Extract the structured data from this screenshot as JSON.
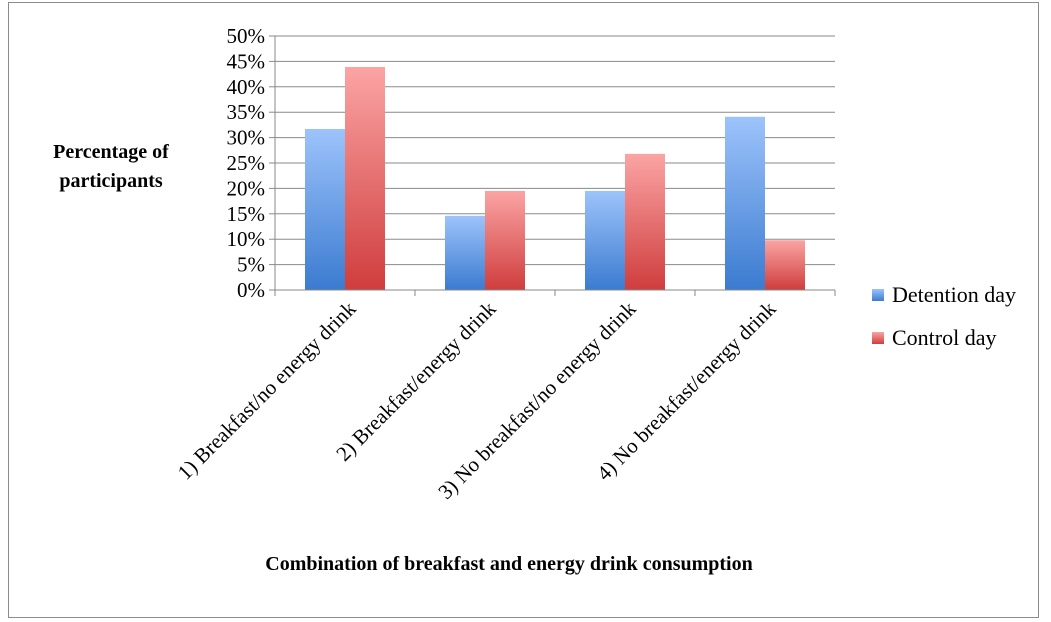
{
  "chart_data": {
    "type": "bar",
    "title": "",
    "categories": [
      "1) Breakfast/no energy drink",
      "2) Breakfast/energy drink",
      "3) No breakfast/no energy drink",
      "4) No breakfast/energy drink"
    ],
    "series": [
      {
        "name": "Detention day",
        "values": [
          31.7,
          14.6,
          19.5,
          34.1
        ]
      },
      {
        "name": "Control day",
        "values": [
          43.9,
          19.5,
          26.8,
          9.8
        ]
      }
    ],
    "ylabel": [
      "Percentage of",
      "participants"
    ],
    "xlabel": "Combination of breakfast and energy drink consumption",
    "ylim": [
      0,
      50
    ],
    "ytick_step": 5,
    "ytick_suffix": "%",
    "grid": true,
    "legend": "right",
    "colors": {
      "Detention day": {
        "top": "#9dc3fb",
        "bottom": "#3b7bd0"
      },
      "Control day": {
        "top": "#fba4a4",
        "bottom": "#cf3d3d"
      }
    }
  }
}
